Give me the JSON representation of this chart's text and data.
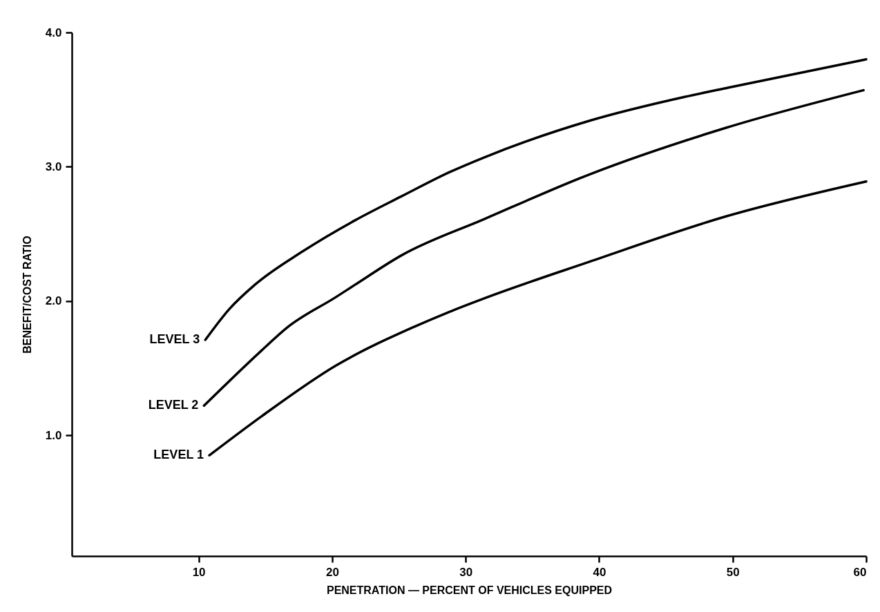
{
  "chart_data": {
    "type": "line",
    "xlabel": "PENETRATION — PERCENT OF VEHICLES EQUIPPED",
    "ylabel": "BENEFIT/COST RATIO",
    "xlim": [
      0.5,
      60
    ],
    "ylim": [
      0.1,
      4.0
    ],
    "xticks": [
      10,
      20,
      30,
      40,
      50,
      60
    ],
    "yticks": [
      {
        "value": 1,
        "label": "1.0"
      },
      {
        "value": 2,
        "label": "2.0"
      },
      {
        "value": 3,
        "label": "3.0"
      },
      {
        "value": 4,
        "label": "4.0"
      }
    ],
    "grid": false,
    "legend": false,
    "marker": "none",
    "line_style": "solid",
    "series": [
      {
        "name": "LEVEL 1",
        "color": "#000000",
        "x": [
          10.8,
          14.7,
          20.3,
          26.2,
          28.8,
          31.4,
          39.2,
          49.5,
          60
        ],
        "values": [
          0.85,
          1.14,
          1.52,
          1.81,
          1.92,
          2.02,
          2.29,
          2.63,
          2.89
        ]
      },
      {
        "name": "LEVEL 2",
        "color": "#000000",
        "x": [
          10.4,
          14.7,
          16.6,
          20.3,
          21.7,
          25.2,
          31.4,
          39.2,
          49.5,
          59.8
        ],
        "values": [
          1.22,
          1.63,
          1.8,
          2.03,
          2.12,
          2.34,
          2.61,
          2.94,
          3.29,
          3.57
        ]
      },
      {
        "name": "LEVEL 3",
        "color": "#000000",
        "x": [
          10.5,
          12.3,
          14.2,
          17.8,
          21.7,
          25.2,
          28.8,
          31.4,
          39.2,
          46.4,
          49.7,
          60
        ],
        "values": [
          1.71,
          1.94,
          2.12,
          2.37,
          2.6,
          2.78,
          2.96,
          3.07,
          3.34,
          3.52,
          3.59,
          3.8
        ]
      }
    ]
  }
}
